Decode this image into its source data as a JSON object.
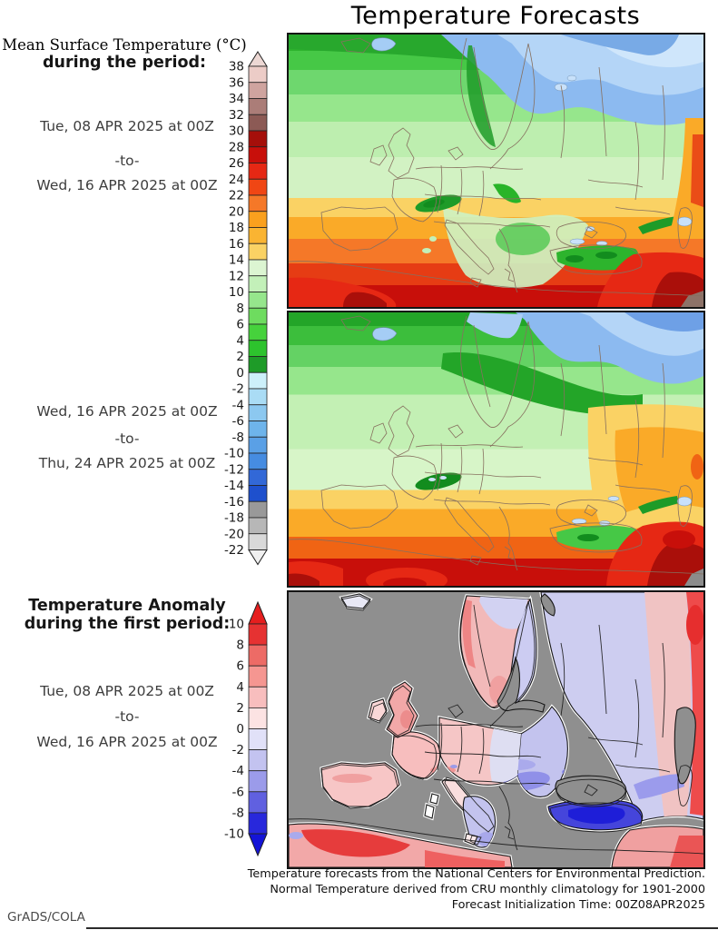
{
  "title": "Temperature Forecasts",
  "left_panel": {
    "mean_title_serif": "Mean Surface Temperature (°C)",
    "mean_title_bold": "during the period:",
    "anomaly_title_line1": "Temperature Anomaly",
    "anomaly_title_line2": "during the first period:",
    "separator": "-to-",
    "period1_start": "Tue, 08 APR 2025 at 00Z",
    "period1_end": "Wed, 16 APR 2025 at 00Z",
    "period2_start": "Wed, 16 APR 2025 at 00Z",
    "period2_end": "Thu, 24 APR 2025 at 00Z",
    "period3_start": "Tue, 08 APR 2025 at 00Z",
    "period3_end": "Wed, 16 APR 2025 at 00Z"
  },
  "colorbars": {
    "temperature": {
      "unit": "°C",
      "ticks": [
        38,
        36,
        34,
        32,
        30,
        28,
        26,
        24,
        22,
        20,
        18,
        16,
        14,
        12,
        10,
        8,
        6,
        4,
        2,
        0,
        -2,
        -4,
        -6,
        -8,
        -10,
        -12,
        -14,
        -16,
        -18,
        -20,
        -22
      ],
      "segment_colors_top_to_bottom": [
        "#ecccc7",
        "#cfa49f",
        "#ab7d78",
        "#8c5a55",
        "#a50f0a",
        "#c80f0a",
        "#e62814",
        "#f04614",
        "#f57828",
        "#faa01e",
        "#fab432",
        "#fad264",
        "#dcf5d2",
        "#c3f0b9",
        "#96e68c",
        "#6edc5f",
        "#46d23c",
        "#2dc32d",
        "#1e9b28",
        "#cdf0fa",
        "#aadcf5",
        "#8cc8f0",
        "#6eb4eb",
        "#5aa0e6",
        "#468ce1",
        "#3268d7",
        "#1e50cd",
        "#999999",
        "#b7b7b7",
        "#d9d9d9"
      ],
      "arrow_top_color": "#edd8d4",
      "arrow_bottom_color": "#f0f0f0"
    },
    "anomaly": {
      "unit": "°C",
      "ticks": [
        10,
        8,
        6,
        4,
        2,
        0,
        -2,
        -4,
        -6,
        -8,
        -10
      ],
      "segment_colors_top_to_bottom": [
        "#e63232",
        "#ed6b66",
        "#f59691",
        "#f8bebe",
        "#fce3e3",
        "#e1e1f8",
        "#c3c3f0",
        "#9b9bea",
        "#6060e0",
        "#2828dc"
      ],
      "arrow_top_color": "#e61e1e",
      "arrow_bottom_color": "#1414d7"
    }
  },
  "caption": {
    "line1": "Temperature forecasts from the National Centers for Environmental Prediction.",
    "line2": "Normal Temperature derived from CRU monthly climatology for 1901-2000",
    "line3": "Forecast Initialization Time: 00Z08APR2025"
  },
  "credit": "GrADS/COLA"
}
